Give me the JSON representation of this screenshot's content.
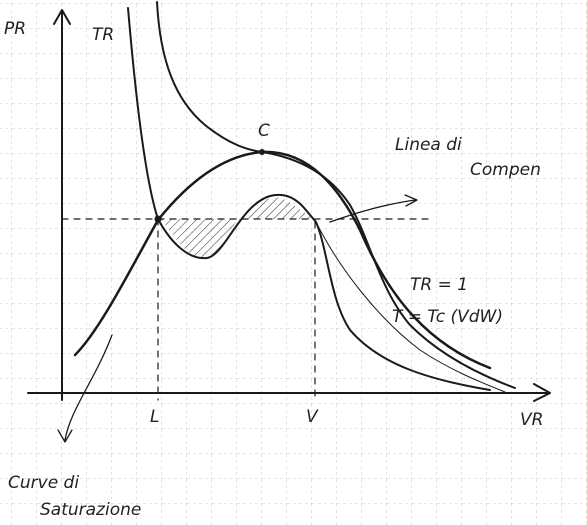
{
  "labels": {
    "y_axis": "PR",
    "x_axis": "VR",
    "isotherm": "TR",
    "critical_point": "C",
    "liquid": "L",
    "vapor": "V",
    "line_note_1": "Linea di",
    "line_note_2": "Compen",
    "tr_note": "TR = 1",
    "vdw_note": "T = Tc (VdW)",
    "saturation_1": "Curve di",
    "saturation_2": "Saturazione"
  }
}
